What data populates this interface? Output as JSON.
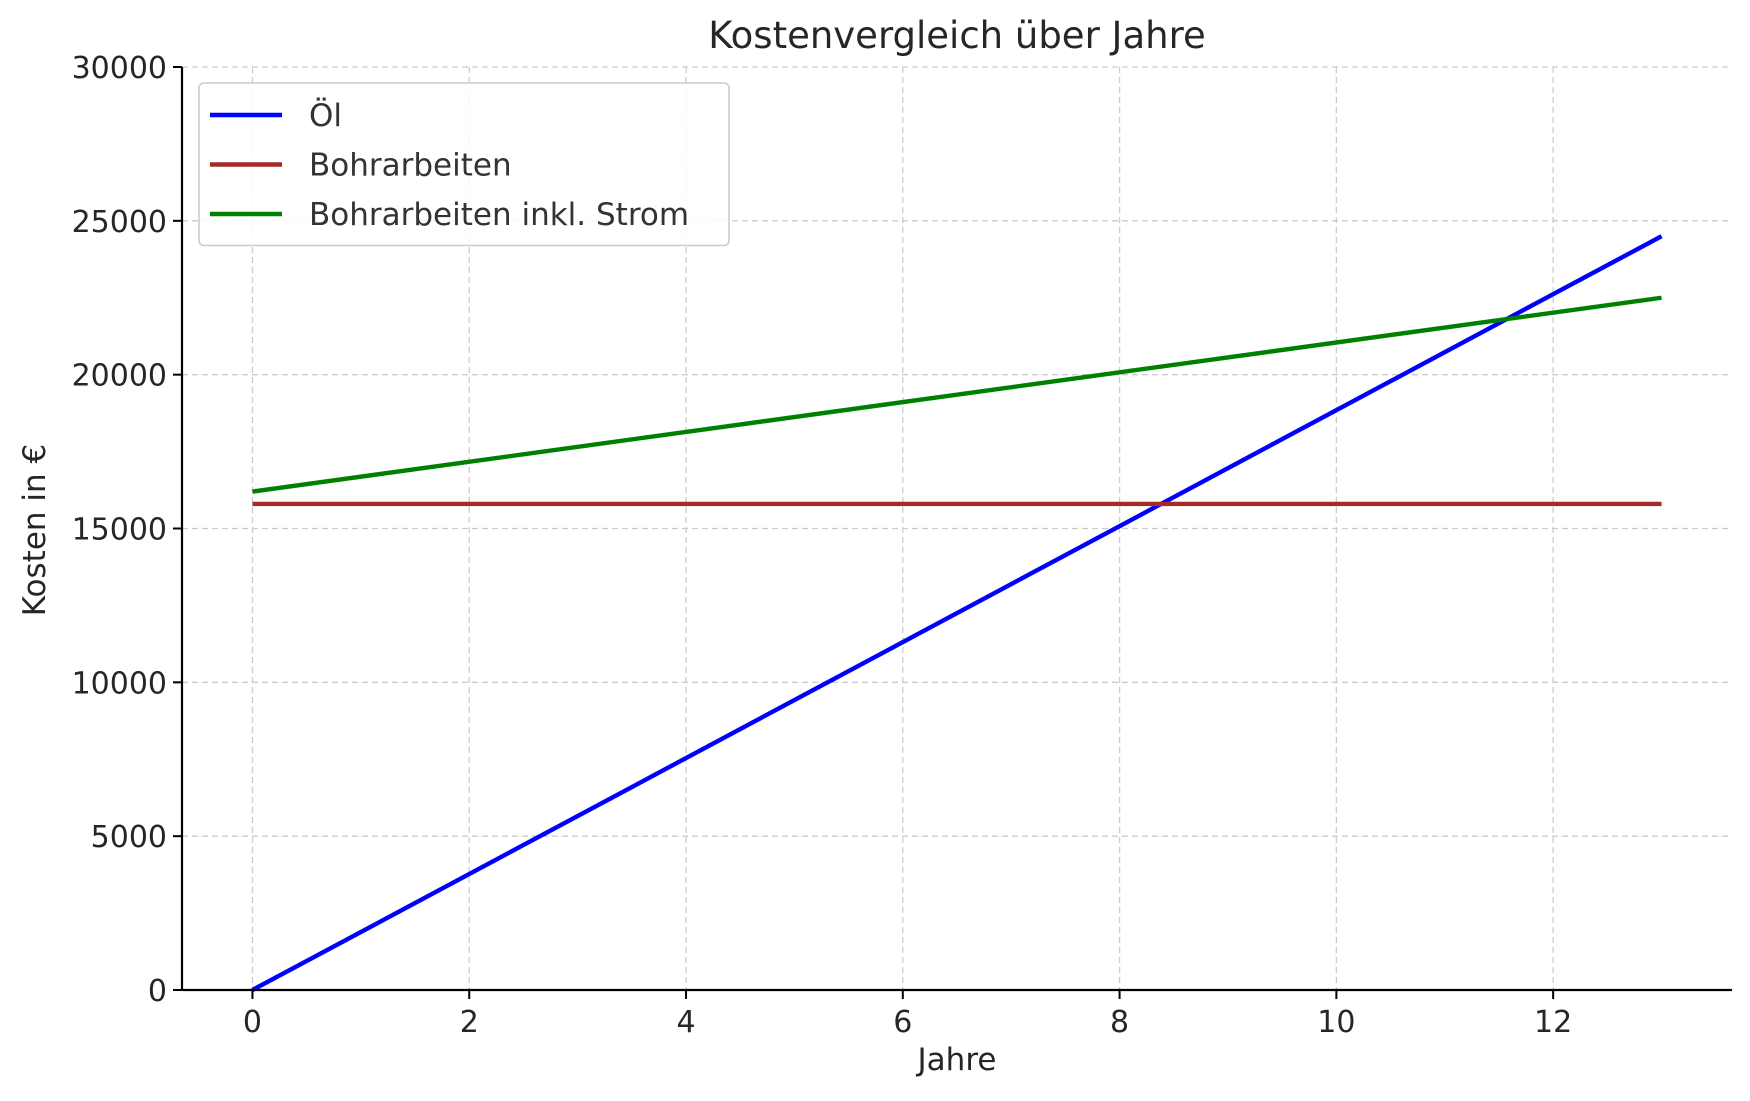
{
  "chart_data": {
    "type": "line",
    "title": "Kostenvergleich über Jahre",
    "xlabel": "Jahre",
    "ylabel": "Kosten in €",
    "xlim": [
      -0.65,
      13.65
    ],
    "ylim": [
      0,
      30000
    ],
    "x_ticks": [
      0,
      2,
      4,
      6,
      8,
      10,
      12
    ],
    "x_tick_labels": [
      "0",
      "2",
      "4",
      "6",
      "8",
      "10",
      "12"
    ],
    "y_ticks": [
      0,
      5000,
      10000,
      15000,
      20000,
      25000,
      30000
    ],
    "y_tick_labels": [
      "0",
      "5000",
      "10000",
      "15000",
      "20000",
      "25000",
      "30000"
    ],
    "grid": true,
    "legend_position": "top-left",
    "x": [
      0,
      13
    ],
    "series": [
      {
        "name": "Öl",
        "color": "#0000ff",
        "values": [
          0,
          24500
        ]
      },
      {
        "name": "Bohrarbeiten",
        "color": "#a52a2a",
        "values": [
          15800,
          15800
        ]
      },
      {
        "name": "Bohrarbeiten inkl. Strom",
        "color": "#008000",
        "values": [
          16200,
          22500
        ]
      }
    ]
  }
}
